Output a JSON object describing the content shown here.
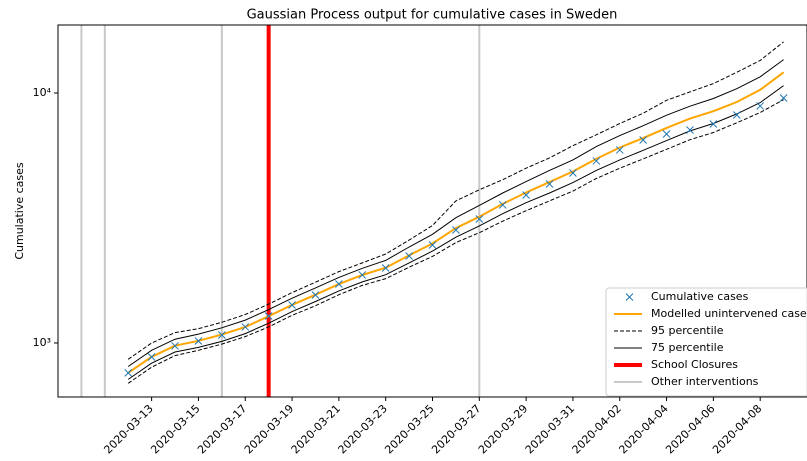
{
  "chart_data": {
    "type": "line",
    "title": "Gaussian Process output for cumulative cases in Sweden",
    "y_label": "Cumulative cases",
    "log_y": true,
    "x": [
      "2020-03-12",
      "2020-03-13",
      "2020-03-14",
      "2020-03-15",
      "2020-03-16",
      "2020-03-17",
      "2020-03-18",
      "2020-03-19",
      "2020-03-20",
      "2020-03-21",
      "2020-03-22",
      "2020-03-23",
      "2020-03-24",
      "2020-03-25",
      "2020-03-26",
      "2020-03-27",
      "2020-03-28",
      "2020-03-29",
      "2020-03-30",
      "2020-03-31",
      "2020-04-01",
      "2020-04-02",
      "2020-04-03",
      "2020-04-04",
      "2020-04-05",
      "2020-04-06",
      "2020-04-07",
      "2020-04-08",
      "2020-04-09"
    ],
    "xlim": [
      "2020-03-09",
      "2020-04-10"
    ],
    "xticks": [
      "2020-03-13",
      "2020-03-15",
      "2020-03-17",
      "2020-03-19",
      "2020-03-21",
      "2020-03-23",
      "2020-03-25",
      "2020-03-27",
      "2020-03-29",
      "2020-03-31",
      "2020-04-02",
      "2020-04-04",
      "2020-04-06",
      "2020-04-08"
    ],
    "ylim": [
      608,
      18700
    ],
    "yticks": [
      {
        "value": 1000,
        "label": "10³"
      },
      {
        "value": 10000,
        "label": "10⁴"
      }
    ],
    "series": [
      {
        "name": "Cumulative cases",
        "color": "#1f77b4",
        "style": "marker",
        "values": [
          759,
          879,
          973,
          1018,
          1076,
          1159,
          1282,
          1419,
          1556,
          1722,
          1871,
          1995,
          2228,
          2466,
          2831,
          3133,
          3565,
          3908,
          4325,
          4786,
          5346,
          5916,
          6486,
          6855,
          7112,
          7516,
          8166,
          8872,
          9550
        ]
      },
      {
        "name": "Modelled unintervened cases",
        "color": "#ffa500",
        "style": "thick",
        "values": [
          760,
          880,
          975,
          1020,
          1080,
          1160,
          1280,
          1420,
          1560,
          1720,
          1870,
          2000,
          2240,
          2500,
          2880,
          3200,
          3600,
          4000,
          4400,
          4850,
          5450,
          6050,
          6600,
          7250,
          7900,
          8450,
          9200,
          10300,
          12100
        ]
      },
      {
        "name": "95 percentile",
        "color": "#000000",
        "style": "dashed",
        "upper": [
          860,
          1000,
          1100,
          1140,
          1210,
          1300,
          1430,
          1590,
          1750,
          1930,
          2090,
          2270,
          2580,
          2950,
          3700,
          4100,
          4500,
          5000,
          5500,
          6150,
          6800,
          7550,
          8300,
          9350,
          10100,
          10900,
          12100,
          13500,
          16000
        ],
        "lower": [
          690,
          800,
          890,
          935,
          990,
          1060,
          1160,
          1290,
          1410,
          1560,
          1700,
          1810,
          2010,
          2220,
          2520,
          2760,
          3070,
          3380,
          3700,
          4050,
          4550,
          5000,
          5450,
          5950,
          6500,
          6950,
          7600,
          8350,
          9400
        ]
      },
      {
        "name": "75 percentile",
        "color": "#000000",
        "style": "thin",
        "upper": [
          805,
          935,
          1035,
          1085,
          1150,
          1235,
          1360,
          1510,
          1660,
          1830,
          1990,
          2140,
          2420,
          2720,
          3170,
          3550,
          3980,
          4420,
          4900,
          5400,
          6100,
          6750,
          7400,
          8150,
          8850,
          9500,
          10400,
          11600,
          13600
        ],
        "lower": [
          715,
          830,
          920,
          960,
          1015,
          1090,
          1200,
          1335,
          1465,
          1615,
          1755,
          1875,
          2090,
          2330,
          2650,
          2940,
          3290,
          3640,
          3980,
          4380,
          4900,
          5400,
          5900,
          6450,
          7050,
          7550,
          8250,
          9150,
          10700
        ]
      }
    ],
    "events": [
      {
        "name": "School Closures",
        "color": "#ff0000",
        "dates": [
          "2020-03-18"
        ]
      },
      {
        "name": "Other interventions",
        "color": "#c8c8c8",
        "dates": [
          "2020-03-10",
          "2020-03-11",
          "2020-03-16",
          "2020-03-27"
        ]
      }
    ],
    "legend": "lower right"
  }
}
